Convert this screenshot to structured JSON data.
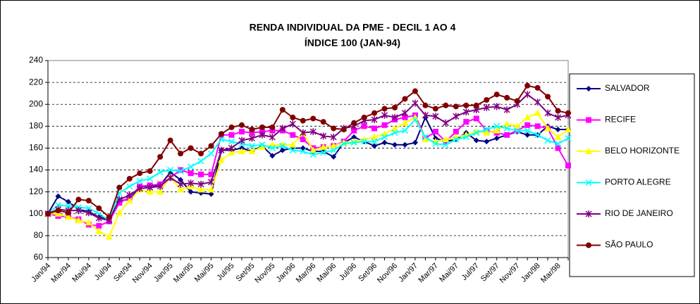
{
  "chart_data": {
    "type": "line",
    "title": "RENDA INDIVIDUAL DA PME - DECIL 1 AO 4",
    "subtitle": "ÍNDICE 100 (JAN-94)",
    "categories": [
      "Jan/94",
      null,
      "Mar/94",
      null,
      "Mai/94",
      null,
      "Jul/94",
      null,
      "Set/94",
      null,
      "Nov/94",
      null,
      "Jan/95",
      null,
      "Mar/95",
      null,
      "Mai/95",
      null,
      "Jul/95",
      null,
      "Set/95",
      null,
      "Nov/95",
      null,
      "Jan/96",
      null,
      "Mar/96",
      null,
      "Mai/96",
      null,
      "Jul/96",
      null,
      "Set/96",
      null,
      "Nov/96",
      null,
      "Jan/97",
      null,
      "Mar/97",
      null,
      "Mai/97",
      null,
      "Jul/97",
      null,
      "Set/97",
      null,
      "Nov/97",
      null,
      "Jan/98",
      null,
      "Mar/98",
      null
    ],
    "ylim": [
      60,
      240
    ],
    "yticks": [
      60,
      80,
      100,
      120,
      140,
      160,
      180,
      200,
      220,
      240
    ],
    "grid": true,
    "legend": "right",
    "series": [
      {
        "name": "SALVADOR",
        "color": "#000080",
        "marker": "diamond",
        "values": [
          100,
          116,
          111,
          104,
          102,
          97,
          95,
          112,
          113,
          125,
          125,
          126,
          138,
          131,
          120,
          119,
          118,
          158,
          158,
          160,
          157,
          162,
          153,
          158,
          160,
          160,
          157,
          157,
          152,
          165,
          170,
          166,
          162,
          165,
          163,
          163,
          165,
          188,
          169,
          166,
          168,
          174,
          167,
          166,
          169,
          172,
          175,
          172,
          172,
          180,
          177,
          177
        ]
      },
      {
        "name": "RECIFE",
        "color": "#FF00FF",
        "marker": "square",
        "values": [
          100,
          98,
          97,
          95,
          90,
          89,
          93,
          110,
          115,
          125,
          126,
          127,
          133,
          140,
          137,
          136,
          136,
          172,
          172,
          175,
          174,
          175,
          176,
          176,
          172,
          168,
          160,
          161,
          162,
          166,
          176,
          180,
          178,
          181,
          186,
          188,
          190,
          169,
          175,
          166,
          175,
          184,
          187,
          176,
          174,
          172,
          176,
          181,
          180,
          178,
          160,
          144
        ]
      },
      {
        "name": "BELO HORIZONTE",
        "color": "#FFFF00",
        "marker": "triangle",
        "values": [
          100,
          100,
          97,
          94,
          92,
          84,
          79,
          101,
          112,
          122,
          120,
          120,
          134,
          122,
          125,
          122,
          122,
          149,
          156,
          157,
          157,
          161,
          163,
          163,
          163,
          174,
          158,
          161,
          162,
          165,
          166,
          168,
          170,
          173,
          178,
          183,
          188,
          168,
          166,
          168,
          170,
          172,
          175,
          174,
          176,
          182,
          180,
          188,
          192,
          178,
          170,
          177
        ]
      },
      {
        "name": "PORTO ALEGRE",
        "color": "#00FFFF",
        "marker": "x",
        "values": [
          100,
          108,
          107,
          106,
          105,
          100,
          94,
          119,
          125,
          130,
          132,
          138,
          140,
          139,
          143,
          148,
          155,
          168,
          166,
          164,
          162,
          163,
          160,
          162,
          158,
          157,
          154,
          156,
          158,
          164,
          165,
          166,
          166,
          170,
          174,
          176,
          186,
          170,
          164,
          163,
          168,
          170,
          174,
          177,
          180,
          178,
          176,
          176,
          172,
          167,
          164,
          169
        ]
      },
      {
        "name": "RIO DE JANEIRO",
        "color": "#800080",
        "marker": "star",
        "values": [
          100,
          104,
          103,
          103,
          101,
          96,
          94,
          113,
          117,
          123,
          124,
          125,
          133,
          127,
          128,
          127,
          129,
          158,
          160,
          167,
          169,
          172,
          170,
          178,
          182,
          174,
          175,
          171,
          170,
          178,
          180,
          185,
          186,
          190,
          188,
          192,
          201,
          190,
          189,
          183,
          189,
          193,
          195,
          197,
          198,
          195,
          200,
          209,
          202,
          192,
          188,
          190
        ]
      },
      {
        "name": "SÃO PAULO",
        "color": "#800000",
        "marker": "circle",
        "values": [
          100,
          103,
          101,
          113,
          112,
          105,
          97,
          124,
          132,
          137,
          139,
          152,
          167,
          155,
          160,
          155,
          162,
          173,
          179,
          181,
          177,
          179,
          179,
          195,
          188,
          185,
          187,
          184,
          178,
          177,
          183,
          188,
          192,
          196,
          197,
          205,
          212,
          199,
          196,
          199,
          198,
          199,
          199,
          204,
          209,
          206,
          203,
          217,
          215,
          207,
          194,
          192
        ]
      }
    ]
  }
}
